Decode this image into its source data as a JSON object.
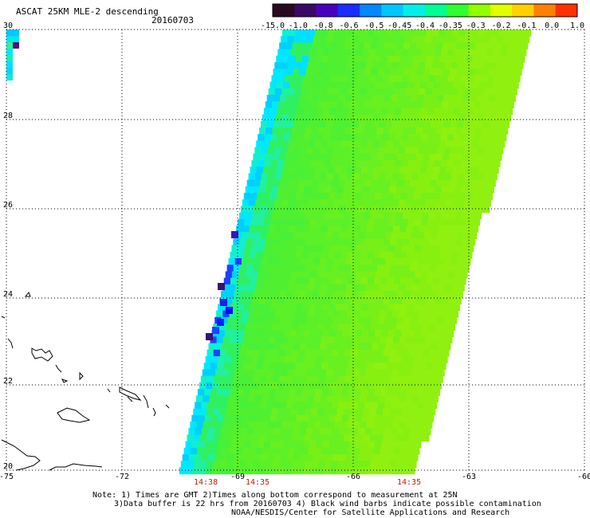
{
  "header": {
    "title": "ASCAT 25KM MLE-2 descending",
    "date": "20160703"
  },
  "colorbar": {
    "labels": [
      "-15.0",
      "-1.0",
      "-0.8",
      "-0.6",
      "-0.5",
      "-0.45",
      "-0.4",
      "-0.35",
      "-0.3",
      "-0.2",
      "-0.1",
      "0.0",
      "1.0"
    ],
    "colors": [
      "#2a0a20",
      "#3b0a66",
      "#4b00c0",
      "#1a2cff",
      "#0088ff",
      "#00c8ff",
      "#00f0e8",
      "#00ff90",
      "#30ff30",
      "#90ff00",
      "#e0ff00",
      "#ffd000",
      "#ff8000",
      "#ff3000"
    ]
  },
  "axes": {
    "lon_labels": [
      "-75",
      "-72",
      "-69",
      "-66",
      "-63",
      "-60"
    ],
    "lat_labels": [
      "30",
      "28",
      "26",
      "24",
      "22",
      "20"
    ]
  },
  "pass_times": [
    "14:38",
    "14:35",
    "14:35"
  ],
  "notes": {
    "line1": "Note: 1) Times are GMT 2)Times along bottom correspond to measurement at 25N",
    "line2": "3)Data buffer is 22 hrs from 20160703 4) Black wind barbs indicate possible contamination",
    "line3": "NOAA/NESDIS/Center for Satellite Applications and Research"
  }
}
